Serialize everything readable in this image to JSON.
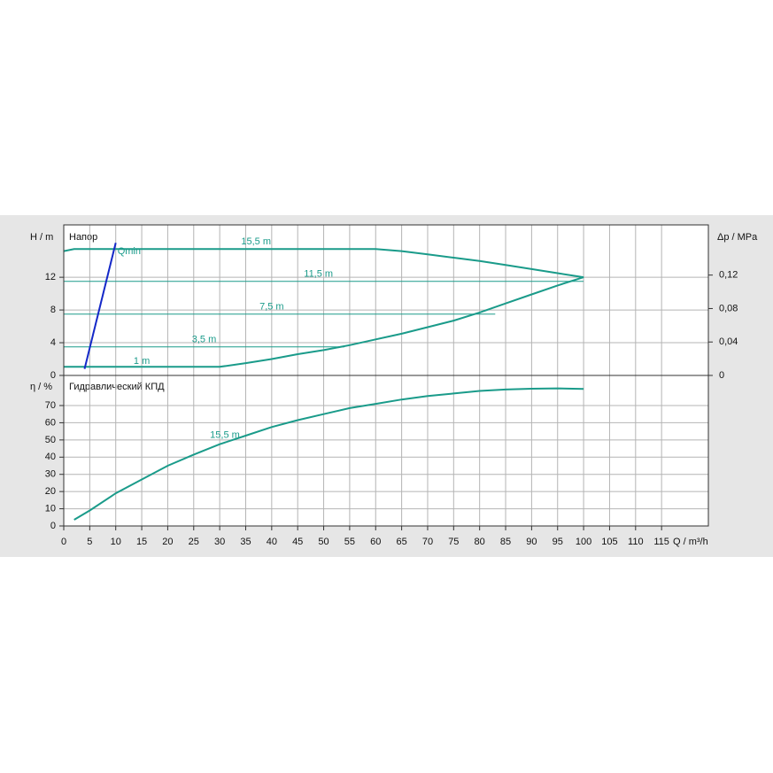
{
  "chart_data": [
    {
      "type": "line",
      "ylabel": "H / m",
      "title": "Напор",
      "y2label": "Δp / MPa",
      "xlim": [
        0,
        124
      ],
      "ylim": [
        0,
        18.4
      ],
      "yticks": [
        0,
        4,
        8,
        12
      ],
      "y2lim": [
        0,
        0.18
      ],
      "y2ticks": [
        0,
        {
          "value": 0.04,
          "label": "0,04"
        },
        {
          "value": 0.08,
          "label": "0,08"
        },
        {
          "value": 0.12,
          "label": "0,12"
        }
      ],
      "grid": true,
      "series": [
        {
          "name": "15,5 m",
          "color": "#1a9b8a",
          "x": [
            0,
            2,
            10,
            20,
            30,
            40,
            50,
            60,
            65,
            70,
            75,
            80,
            85,
            90,
            95,
            100
          ],
          "values": [
            15.2,
            15.45,
            15.45,
            15.45,
            15.45,
            15.45,
            15.45,
            15.45,
            15.2,
            14.8,
            14.4,
            14.0,
            13.5,
            13.0,
            12.5,
            12.0
          ]
        },
        {
          "name": "11,5 m",
          "color": "#1a9b8a",
          "x": [
            0,
            100
          ],
          "values": [
            11.5,
            11.5
          ]
        },
        {
          "name": "7,5 m",
          "color": "#1a9b8a",
          "x": [
            0,
            83
          ],
          "values": [
            7.5,
            7.5
          ]
        },
        {
          "name": "3,5 m",
          "color": "#1a9b8a",
          "x": [
            0,
            54
          ],
          "values": [
            3.5,
            3.5
          ]
        },
        {
          "name": "1 m",
          "color": "#1a9b8a",
          "x": [
            0,
            10,
            20,
            30,
            35,
            40,
            45,
            50,
            55,
            60,
            65,
            70,
            75,
            80,
            85,
            90,
            95,
            100
          ],
          "values": [
            1.05,
            1.05,
            1.05,
            1.05,
            1.5,
            2.0,
            2.6,
            3.1,
            3.7,
            4.4,
            5.1,
            5.9,
            6.7,
            7.7,
            8.8,
            9.9,
            11.0,
            12.0
          ]
        },
        {
          "name": "Qmin",
          "color": "#1428c8",
          "x": [
            4,
            10
          ],
          "values": [
            0.8,
            16.2
          ]
        }
      ]
    },
    {
      "type": "line",
      "ylabel": "η / %",
      "title": "Гидравлический КПД",
      "xlabel": "Q / m³/h",
      "xlim": [
        0,
        124
      ],
      "xticks": [
        0,
        5,
        10,
        15,
        20,
        25,
        30,
        35,
        40,
        45,
        50,
        55,
        60,
        65,
        70,
        75,
        80,
        85,
        90,
        95,
        100,
        105,
        110,
        115
      ],
      "ylim": [
        0,
        87.5
      ],
      "yticks": [
        0,
        10,
        20,
        30,
        40,
        50,
        60,
        70
      ],
      "grid": true,
      "series": [
        {
          "name": "15,5 m",
          "color": "#1a9b8a",
          "x": [
            2,
            5,
            10,
            15,
            20,
            25,
            30,
            35,
            40,
            45,
            50,
            55,
            60,
            65,
            70,
            75,
            80,
            85,
            90,
            95,
            100
          ],
          "values": [
            3.6,
            9,
            19,
            27,
            35,
            41.5,
            47.5,
            52.5,
            57.5,
            61.5,
            65,
            68.5,
            71,
            73.5,
            75.5,
            77,
            78.5,
            79.3,
            79.8,
            80,
            79.7
          ]
        }
      ]
    }
  ]
}
